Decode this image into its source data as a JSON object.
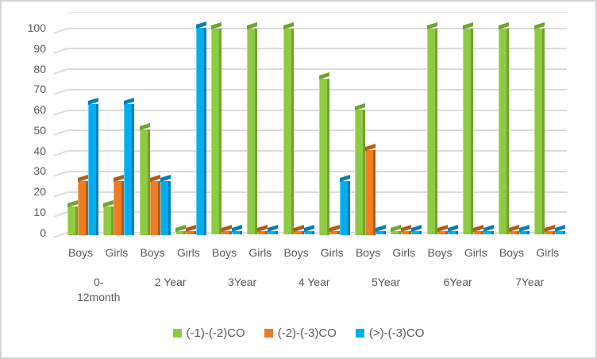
{
  "chart_data": {
    "type": "bar",
    "title": "",
    "style": {
      "background": "#FFFFFF",
      "border_color": "#D5D3D1",
      "gridline_color": "#D9D9D9",
      "text_color": "#595959",
      "effect": "3d-beveled-columns"
    },
    "y_axis": {
      "min": 0,
      "max": 100,
      "tick_step": 10,
      "ticks": [
        0,
        10,
        20,
        30,
        40,
        50,
        60,
        70,
        80,
        90,
        100
      ],
      "grid": true
    },
    "x_axis": {
      "sex_labels": [
        "Boys",
        "Girls",
        "Boys",
        "Girls",
        "Boys",
        "Girls",
        "Boys",
        "Girls",
        "Boys",
        "Girls",
        "Boys",
        "Girls",
        "Boys",
        "Girls"
      ],
      "age_groups": [
        "0-\n12month",
        "2 Year",
        "3Year",
        "4 Year",
        "5Year",
        "6Year",
        "7Year"
      ]
    },
    "legend_position": "bottom",
    "series": [
      {
        "name": "(-1)-(-2)CO",
        "color": "#8FCB42",
        "color_dark": "#6FA32C",
        "color_light": "#B5E07E",
        "values": [
          12.5,
          12.5,
          50,
          0.5,
          99.5,
          99.5,
          99.5,
          75,
          60,
          0.5,
          99.5,
          99.5,
          99.5,
          99.5
        ]
      },
      {
        "name": "(-2)-(-3)CO",
        "color": "#EC7D25",
        "color_dark": "#B85A0E",
        "color_light": "#F2A968",
        "values": [
          25,
          25,
          25,
          0.5,
          0.5,
          0.5,
          0.5,
          0.5,
          40,
          0.5,
          0.5,
          0.5,
          0.5,
          0.5
        ]
      },
      {
        "name": "(>)-(-3)CO",
        "color": "#00AEEF",
        "color_dark": "#0081B8",
        "color_light": "#5FD0F7",
        "values": [
          62.5,
          62.5,
          25,
          100,
          0.5,
          0.5,
          0.5,
          25,
          0.5,
          0.5,
          0.5,
          0.5,
          0.5,
          0.5
        ]
      }
    ]
  }
}
